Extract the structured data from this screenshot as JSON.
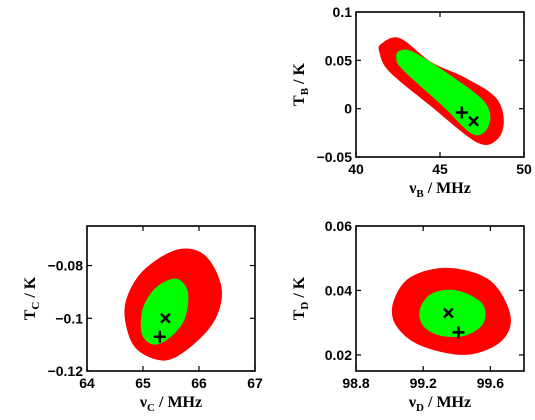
{
  "colors": {
    "outer": "#ff0000",
    "inner": "#00ff00",
    "marker": "#000000"
  },
  "chart_data": [
    {
      "id": "B",
      "type": "contour",
      "xlabel": "ν",
      "xlabel_sub": "B",
      "xlabel_unit": " / MHz",
      "ylabel": "T",
      "ylabel_sub": "B",
      "ylabel_unit": " / K",
      "xlim": [
        40,
        50
      ],
      "ylim": [
        -0.05,
        0.1
      ],
      "xticks": [
        40,
        45,
        50
      ],
      "xtick_labels": [
        "40",
        "45",
        "50"
      ],
      "yticks": [
        -0.05,
        0,
        0.05,
        0.1
      ],
      "ytick_labels": [
        "−0.05",
        "0",
        "0.05",
        "0.1"
      ],
      "outer_region": [
        [
          41.5,
          0.067
        ],
        [
          42.6,
          0.073
        ],
        [
          44.5,
          0.048
        ],
        [
          46.5,
          0.032
        ],
        [
          48.3,
          0.012
        ],
        [
          48.8,
          -0.012
        ],
        [
          48.4,
          -0.032
        ],
        [
          47.2,
          -0.035
        ],
        [
          44.5,
          0.002
        ],
        [
          42.0,
          0.038
        ],
        [
          41.4,
          0.058
        ]
      ],
      "inner_region": [
        [
          42.6,
          0.06
        ],
        [
          43.5,
          0.058
        ],
        [
          46.0,
          0.03
        ],
        [
          47.6,
          0.008
        ],
        [
          48.0,
          -0.01
        ],
        [
          47.6,
          -0.025
        ],
        [
          46.8,
          -0.025
        ],
        [
          45.2,
          0.002
        ],
        [
          42.8,
          0.04
        ],
        [
          42.4,
          0.052
        ]
      ],
      "cross": [
        47.0,
        -0.013
      ],
      "plus": [
        46.3,
        -0.004
      ]
    },
    {
      "id": "C",
      "type": "contour",
      "xlabel": "ν",
      "xlabel_sub": "C",
      "xlabel_unit": " / MHz",
      "ylabel": "T",
      "ylabel_sub": "C",
      "ylabel_unit": " / K",
      "xlim": [
        64,
        67
      ],
      "ylim": [
        -0.12,
        -0.065
      ],
      "xticks": [
        64,
        65,
        66,
        67
      ],
      "xtick_labels": [
        "64",
        "65",
        "66",
        "67"
      ],
      "yticks": [
        -0.12,
        -0.1,
        -0.08
      ],
      "ytick_labels": [
        "−0.12",
        "−0.1",
        "−0.08"
      ],
      "outer_region": [
        [
          64.7,
          -0.093
        ],
        [
          65.0,
          -0.082
        ],
        [
          65.6,
          -0.074
        ],
        [
          66.1,
          -0.076
        ],
        [
          66.4,
          -0.088
        ],
        [
          66.3,
          -0.1
        ],
        [
          65.9,
          -0.11
        ],
        [
          65.4,
          -0.116
        ],
        [
          64.9,
          -0.112
        ],
        [
          64.7,
          -0.103
        ]
      ],
      "inner_region": [
        [
          65.0,
          -0.096
        ],
        [
          65.25,
          -0.088
        ],
        [
          65.6,
          -0.085
        ],
        [
          65.8,
          -0.09
        ],
        [
          65.75,
          -0.1
        ],
        [
          65.5,
          -0.107
        ],
        [
          65.2,
          -0.11
        ],
        [
          64.98,
          -0.106
        ]
      ],
      "cross": [
        65.4,
        -0.1
      ],
      "plus": [
        65.3,
        -0.107
      ]
    },
    {
      "id": "D",
      "type": "contour",
      "xlabel": "ν",
      "xlabel_sub": "D",
      "xlabel_unit": " / MHz",
      "ylabel": "T",
      "ylabel_sub": "D",
      "ylabel_unit": " / K",
      "xlim": [
        98.8,
        99.8
      ],
      "ylim": [
        0.015,
        0.06
      ],
      "xticks": [
        98.8,
        99.2,
        99.6
      ],
      "xtick_labels": [
        "98.8",
        "99.2",
        "99.6"
      ],
      "yticks": [
        0.02,
        0.04,
        0.06
      ],
      "ytick_labels": [
        "0.02",
        "0.04",
        "0.06"
      ],
      "outer_region": [
        [
          99.02,
          0.036
        ],
        [
          99.12,
          0.044
        ],
        [
          99.35,
          0.047
        ],
        [
          99.6,
          0.043
        ],
        [
          99.72,
          0.032
        ],
        [
          99.66,
          0.024
        ],
        [
          99.45,
          0.02
        ],
        [
          99.18,
          0.023
        ],
        [
          99.04,
          0.029
        ]
      ],
      "inner_region": [
        [
          99.18,
          0.034
        ],
        [
          99.25,
          0.039
        ],
        [
          99.4,
          0.04
        ],
        [
          99.55,
          0.036
        ],
        [
          99.56,
          0.03
        ],
        [
          99.45,
          0.026
        ],
        [
          99.3,
          0.026
        ],
        [
          99.2,
          0.029
        ]
      ],
      "cross": [
        99.35,
        0.033
      ],
      "plus": [
        99.41,
        0.027
      ]
    }
  ]
}
